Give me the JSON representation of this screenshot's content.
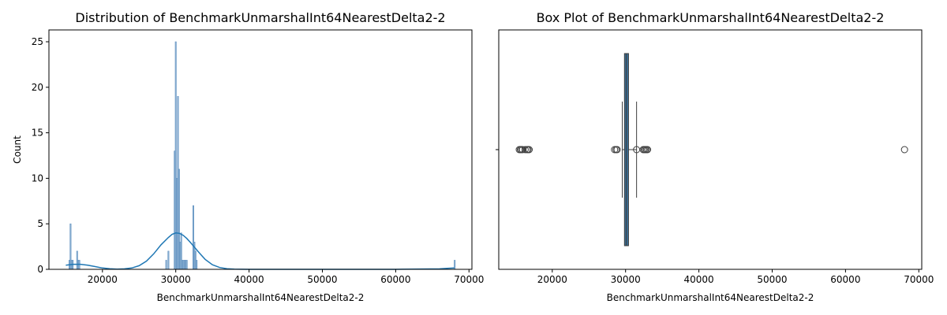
{
  "chart_data": [
    {
      "type": "histogram",
      "title": "Distribution of BenchmarkUnmarshalInt64NearestDelta2-2",
      "xlabel": "BenchmarkUnmarshalInt64NearestDelta2-2",
      "ylabel": "Count",
      "xlim": [
        12700,
        70400
      ],
      "ylim": [
        0,
        26.3
      ],
      "xticks": [
        20000,
        30000,
        40000,
        50000,
        60000,
        70000
      ],
      "yticks": [
        0,
        5,
        10,
        15,
        20,
        25
      ],
      "grid": false,
      "colors": {
        "bar": "#8fb3d4",
        "bar_edge": "#5d8fbf",
        "kde": "#1f77b4"
      },
      "bins": [
        {
          "x": 15500,
          "count": 1
        },
        {
          "x": 15650,
          "count": 5
        },
        {
          "x": 15800,
          "count": 1
        },
        {
          "x": 15950,
          "count": 1
        },
        {
          "x": 16550,
          "count": 2
        },
        {
          "x": 16700,
          "count": 1
        },
        {
          "x": 16850,
          "count": 1
        },
        {
          "x": 28700,
          "count": 1
        },
        {
          "x": 29000,
          "count": 2
        },
        {
          "x": 29850,
          "count": 13
        },
        {
          "x": 30000,
          "count": 25
        },
        {
          "x": 30150,
          "count": 10
        },
        {
          "x": 30300,
          "count": 19
        },
        {
          "x": 30450,
          "count": 11
        },
        {
          "x": 30600,
          "count": 3
        },
        {
          "x": 30750,
          "count": 4
        },
        {
          "x": 30900,
          "count": 1
        },
        {
          "x": 31050,
          "count": 1
        },
        {
          "x": 31200,
          "count": 1
        },
        {
          "x": 31350,
          "count": 1
        },
        {
          "x": 31500,
          "count": 1
        },
        {
          "x": 32400,
          "count": 7
        },
        {
          "x": 32550,
          "count": 3
        },
        {
          "x": 32700,
          "count": 2
        },
        {
          "x": 32850,
          "count": 1
        },
        {
          "x": 68050,
          "count": 1
        }
      ],
      "bin_width": 150,
      "kde": {
        "x": [
          15000,
          16000,
          17000,
          18000,
          19000,
          20000,
          21000,
          22000,
          23000,
          24000,
          25000,
          26000,
          27000,
          28000,
          29000,
          29500,
          30000,
          30500,
          31000,
          31500,
          32000,
          33000,
          34000,
          35000,
          36000,
          37000,
          38000,
          40000,
          50000,
          60000,
          66000,
          67000,
          68000
        ],
        "y": [
          0.45,
          0.55,
          0.55,
          0.45,
          0.3,
          0.15,
          0.06,
          0.03,
          0.05,
          0.15,
          0.4,
          0.9,
          1.7,
          2.7,
          3.5,
          3.85,
          4.0,
          3.95,
          3.75,
          3.4,
          2.95,
          2.0,
          1.1,
          0.5,
          0.2,
          0.07,
          0.02,
          0.0,
          0.0,
          0.0,
          0.05,
          0.1,
          0.15
        ]
      }
    },
    {
      "type": "box",
      "title": "Box Plot of BenchmarkUnmarshalInt64NearestDelta2-2",
      "xlabel": "BenchmarkUnmarshalInt64NearestDelta2-2",
      "xlim": [
        12700,
        70400
      ],
      "xticks": [
        20000,
        30000,
        40000,
        50000,
        60000,
        70000
      ],
      "grid": false,
      "colors": {
        "box": "#3a6d94",
        "line": "#3d3d3d"
      },
      "box": {
        "q1": 29850,
        "median": 30100,
        "q3": 30400,
        "whisker_low": 29550,
        "whisker_high": 31500
      },
      "outliers": [
        15500,
        15650,
        15800,
        15950,
        16300,
        16550,
        16700,
        16850,
        28500,
        28700,
        28850,
        31500,
        32400,
        32550,
        32700,
        32850,
        33000,
        68050
      ]
    }
  ]
}
